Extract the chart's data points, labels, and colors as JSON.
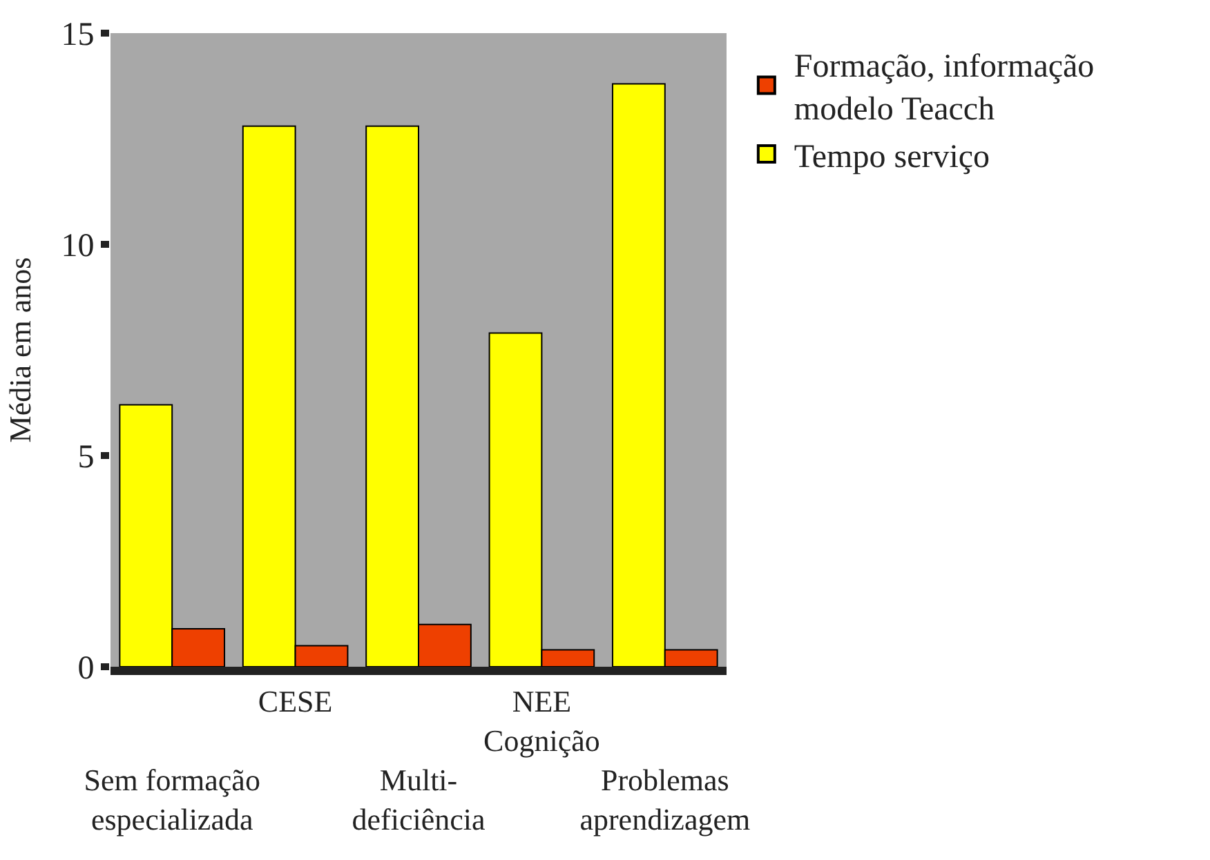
{
  "chart_data": {
    "type": "bar",
    "ylabel": "Média em anos",
    "categories": [
      "Sem formação\nespecializada",
      "CESE",
      "Multi-\ndeficiência",
      "NEE\nCognição",
      "Problemas\naprendizagem"
    ],
    "series": [
      {
        "name": "Tempo serviço",
        "color": "#ffff00",
        "values": [
          6.2,
          12.8,
          12.8,
          7.9,
          13.8
        ]
      },
      {
        "name": "Formação, informação\nmodelo Teacch",
        "color": "#ee4000",
        "values": [
          0.9,
          0.5,
          1.0,
          0.4,
          0.4
        ]
      }
    ],
    "ylim": [
      0,
      15
    ],
    "yticks": [
      0,
      5,
      10,
      15
    ],
    "grid": false,
    "legend": "top right"
  }
}
